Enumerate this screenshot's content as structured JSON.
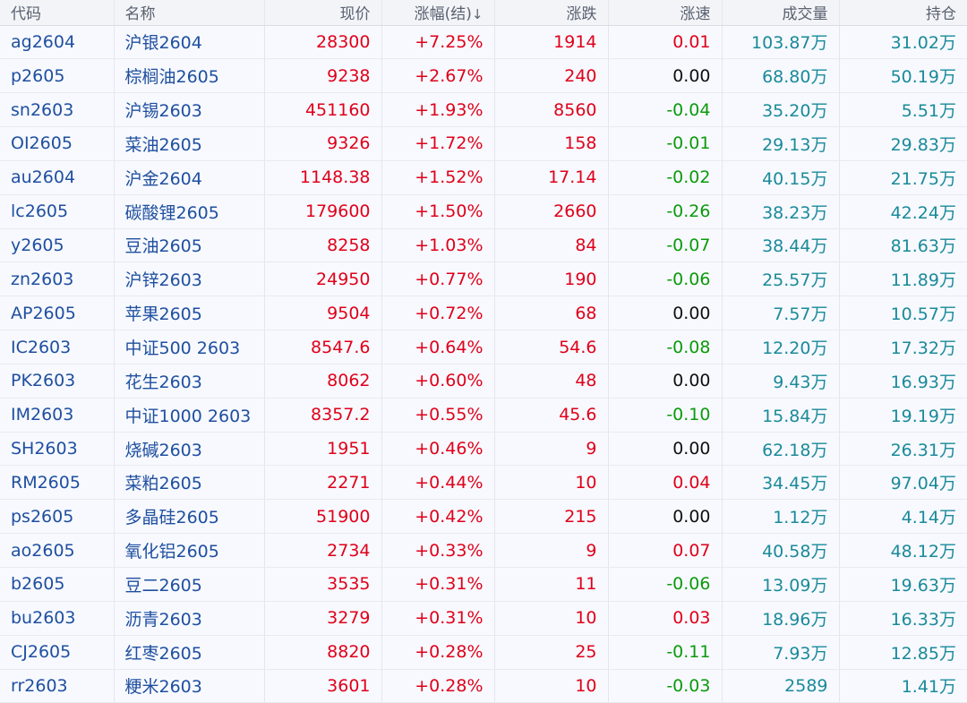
{
  "columns": [
    "代码",
    "名称",
    "现价",
    "涨幅(结)",
    "涨跌",
    "涨速",
    "成交量",
    "持仓"
  ],
  "sort_indicator": "↓",
  "rows": [
    {
      "code": "ag2604",
      "name": "沪银2604",
      "price": "28300",
      "change_pct": "+7.25%",
      "change": "1914",
      "speed": "0.01",
      "speed_dir": "up",
      "volume": "103.87万",
      "oi": "31.02万"
    },
    {
      "code": "p2605",
      "name": "棕榈油2605",
      "price": "9238",
      "change_pct": "+2.67%",
      "change": "240",
      "speed": "0.00",
      "speed_dir": "flat",
      "volume": "68.80万",
      "oi": "50.19万"
    },
    {
      "code": "sn2603",
      "name": "沪锡2603",
      "price": "451160",
      "change_pct": "+1.93%",
      "change": "8560",
      "speed": "-0.04",
      "speed_dir": "down",
      "volume": "35.20万",
      "oi": "5.51万"
    },
    {
      "code": "OI2605",
      "name": "菜油2605",
      "price": "9326",
      "change_pct": "+1.72%",
      "change": "158",
      "speed": "-0.01",
      "speed_dir": "down",
      "volume": "29.13万",
      "oi": "29.83万"
    },
    {
      "code": "au2604",
      "name": "沪金2604",
      "price": "1148.38",
      "change_pct": "+1.52%",
      "change": "17.14",
      "speed": "-0.02",
      "speed_dir": "down",
      "volume": "40.15万",
      "oi": "21.75万"
    },
    {
      "code": "lc2605",
      "name": "碳酸锂2605",
      "price": "179600",
      "change_pct": "+1.50%",
      "change": "2660",
      "speed": "-0.26",
      "speed_dir": "down",
      "volume": "38.23万",
      "oi": "42.24万"
    },
    {
      "code": "y2605",
      "name": "豆油2605",
      "price": "8258",
      "change_pct": "+1.03%",
      "change": "84",
      "speed": "-0.07",
      "speed_dir": "down",
      "volume": "38.44万",
      "oi": "81.63万"
    },
    {
      "code": "zn2603",
      "name": "沪锌2603",
      "price": "24950",
      "change_pct": "+0.77%",
      "change": "190",
      "speed": "-0.06",
      "speed_dir": "down",
      "volume": "25.57万",
      "oi": "11.89万"
    },
    {
      "code": "AP2605",
      "name": "苹果2605",
      "price": "9504",
      "change_pct": "+0.72%",
      "change": "68",
      "speed": "0.00",
      "speed_dir": "flat",
      "volume": "7.57万",
      "oi": "10.57万"
    },
    {
      "code": "IC2603",
      "name": "中证500 2603",
      "price": "8547.6",
      "change_pct": "+0.64%",
      "change": "54.6",
      "speed": "-0.08",
      "speed_dir": "down",
      "volume": "12.20万",
      "oi": "17.32万"
    },
    {
      "code": "PK2603",
      "name": "花生2603",
      "price": "8062",
      "change_pct": "+0.60%",
      "change": "48",
      "speed": "0.00",
      "speed_dir": "flat",
      "volume": "9.43万",
      "oi": "16.93万"
    },
    {
      "code": "IM2603",
      "name": "中证1000 2603",
      "price": "8357.2",
      "change_pct": "+0.55%",
      "change": "45.6",
      "speed": "-0.10",
      "speed_dir": "down",
      "volume": "15.84万",
      "oi": "19.19万"
    },
    {
      "code": "SH2603",
      "name": "烧碱2603",
      "price": "1951",
      "change_pct": "+0.46%",
      "change": "9",
      "speed": "0.00",
      "speed_dir": "flat",
      "volume": "62.18万",
      "oi": "26.31万"
    },
    {
      "code": "RM2605",
      "name": "菜粕2605",
      "price": "2271",
      "change_pct": "+0.44%",
      "change": "10",
      "speed": "0.04",
      "speed_dir": "up",
      "volume": "34.45万",
      "oi": "97.04万"
    },
    {
      "code": "ps2605",
      "name": "多晶硅2605",
      "price": "51900",
      "change_pct": "+0.42%",
      "change": "215",
      "speed": "0.00",
      "speed_dir": "flat",
      "volume": "1.12万",
      "oi": "4.14万"
    },
    {
      "code": "ao2605",
      "name": "氧化铝2605",
      "price": "2734",
      "change_pct": "+0.33%",
      "change": "9",
      "speed": "0.07",
      "speed_dir": "up",
      "volume": "40.58万",
      "oi": "48.12万"
    },
    {
      "code": "b2605",
      "name": "豆二2605",
      "price": "3535",
      "change_pct": "+0.31%",
      "change": "11",
      "speed": "-0.06",
      "speed_dir": "down",
      "volume": "13.09万",
      "oi": "19.63万"
    },
    {
      "code": "bu2603",
      "name": "沥青2603",
      "price": "3279",
      "change_pct": "+0.31%",
      "change": "10",
      "speed": "0.03",
      "speed_dir": "up",
      "volume": "18.96万",
      "oi": "16.33万"
    },
    {
      "code": "CJ2605",
      "name": "红枣2605",
      "price": "8820",
      "change_pct": "+0.28%",
      "change": "25",
      "speed": "-0.11",
      "speed_dir": "down",
      "volume": "7.93万",
      "oi": "12.85万"
    },
    {
      "code": "rr2603",
      "name": "粳米2603",
      "price": "3601",
      "change_pct": "+0.28%",
      "change": "10",
      "speed": "-0.03",
      "speed_dir": "down",
      "volume": "2589",
      "oi": "1.41万"
    }
  ]
}
